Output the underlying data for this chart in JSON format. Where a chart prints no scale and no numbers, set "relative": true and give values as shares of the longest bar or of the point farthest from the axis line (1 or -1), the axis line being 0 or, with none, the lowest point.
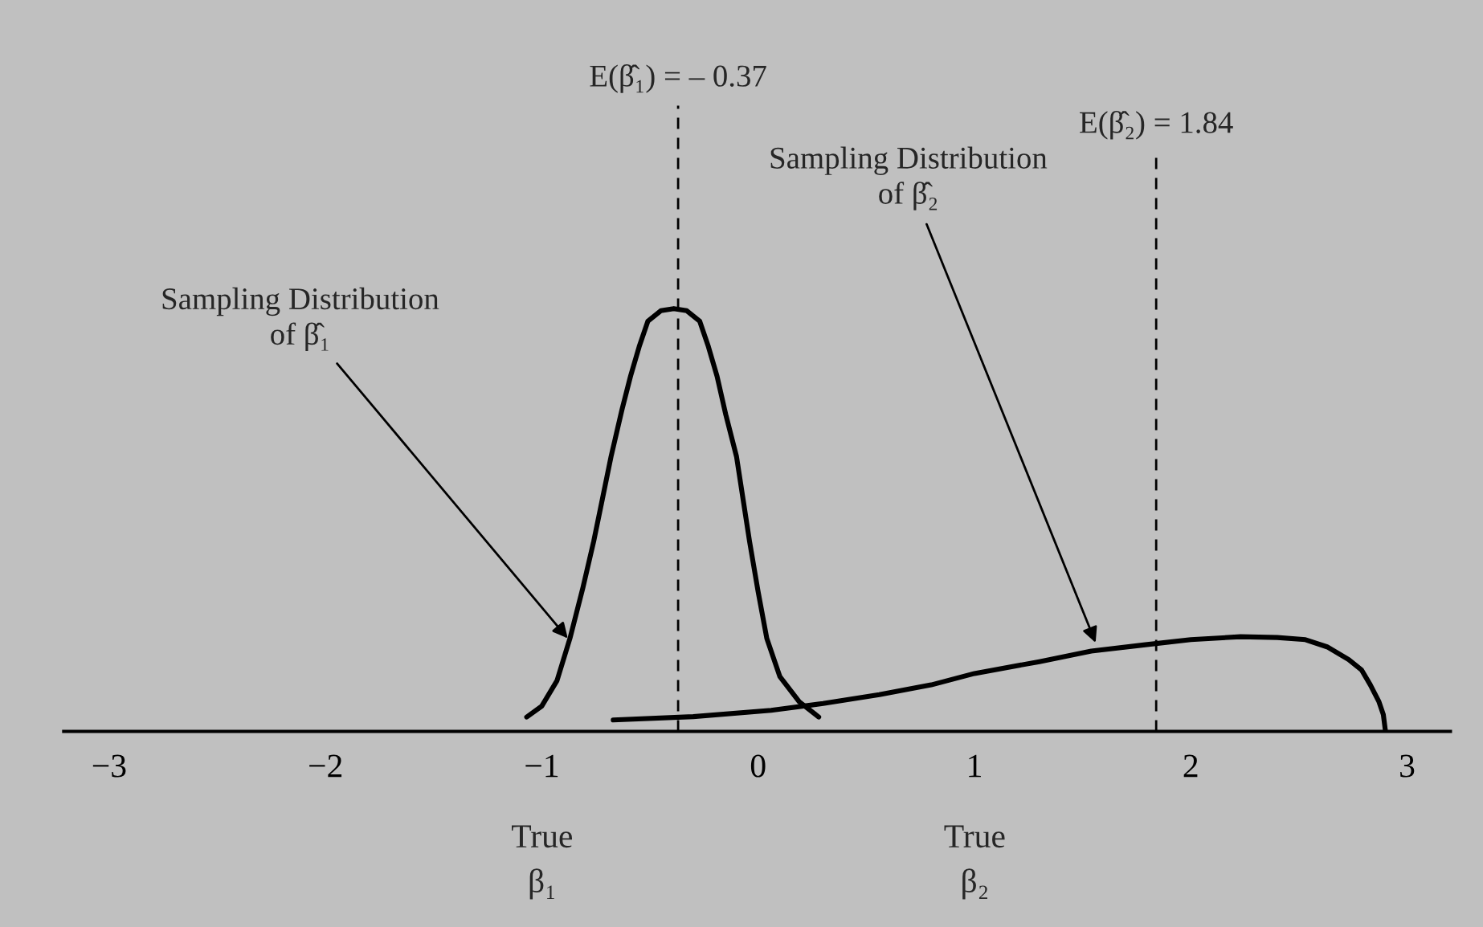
{
  "chart_data": {
    "type": "line",
    "relative": true,
    "xlim": [
      -3.21,
      3.2
    ],
    "xticks": [
      {
        "value": -3,
        "label": "−3"
      },
      {
        "value": -2,
        "label": "−2"
      },
      {
        "value": -1,
        "label": "−1"
      },
      0,
      1,
      2,
      3
    ],
    "tick_labels": "x",
    "marker": "none",
    "line_style": "solid",
    "series": [
      {
        "color": "#000000",
        "x": [
          -1.07,
          -1.0,
          -0.93,
          -0.87,
          -0.81,
          -0.76,
          -0.72,
          -0.68,
          -0.63,
          -0.59,
          -0.55,
          -0.51,
          -0.45,
          -0.39,
          -0.33,
          -0.27,
          -0.23,
          -0.19,
          -0.15,
          -0.1,
          -0.07,
          -0.04,
          0.0,
          0.04,
          0.1,
          0.19,
          0.28
        ],
        "values": [
          0.034,
          0.06,
          0.12,
          0.22,
          0.34,
          0.45,
          0.55,
          0.65,
          0.76,
          0.84,
          0.91,
          0.97,
          0.995,
          1.0,
          0.995,
          0.97,
          0.91,
          0.84,
          0.75,
          0.65,
          0.55,
          0.45,
          0.33,
          0.22,
          0.13,
          0.07,
          0.034
        ]
      },
      {
        "color": "#000000",
        "x": [
          -0.67,
          -0.3,
          0.06,
          0.3,
          0.56,
          0.8,
          1.0,
          1.3,
          1.54,
          1.79,
          2.0,
          2.23,
          2.4,
          2.53,
          2.63,
          2.73,
          2.79,
          2.83,
          2.87,
          2.89,
          2.9
        ],
        "values": [
          0.027,
          0.035,
          0.05,
          0.066,
          0.087,
          0.11,
          0.137,
          0.165,
          0.19,
          0.205,
          0.217,
          0.224,
          0.222,
          0.217,
          0.2,
          0.17,
          0.145,
          0.11,
          0.07,
          0.04,
          0.0
        ]
      }
    ],
    "ref_lines": [
      {
        "axis": "x",
        "value": -0.37,
        "label": "E(β̂₁) = – 0.37",
        "color": "#000000",
        "line_style": "dashed"
      },
      {
        "axis": "x",
        "value": 1.84,
        "label": "E(β̂₂) = 1.84",
        "color": "#000000",
        "line_style": "dashed"
      }
    ],
    "annotations": [
      {
        "text": "Sampling Distribution\nof β̂₁",
        "x": -0.88,
        "y": 0.22
      },
      {
        "text": "Sampling Distribution\nof β̂₂",
        "x": 1.56,
        "y": 0.21
      },
      "True\nβ₁",
      "True\nβ₂"
    ]
  }
}
